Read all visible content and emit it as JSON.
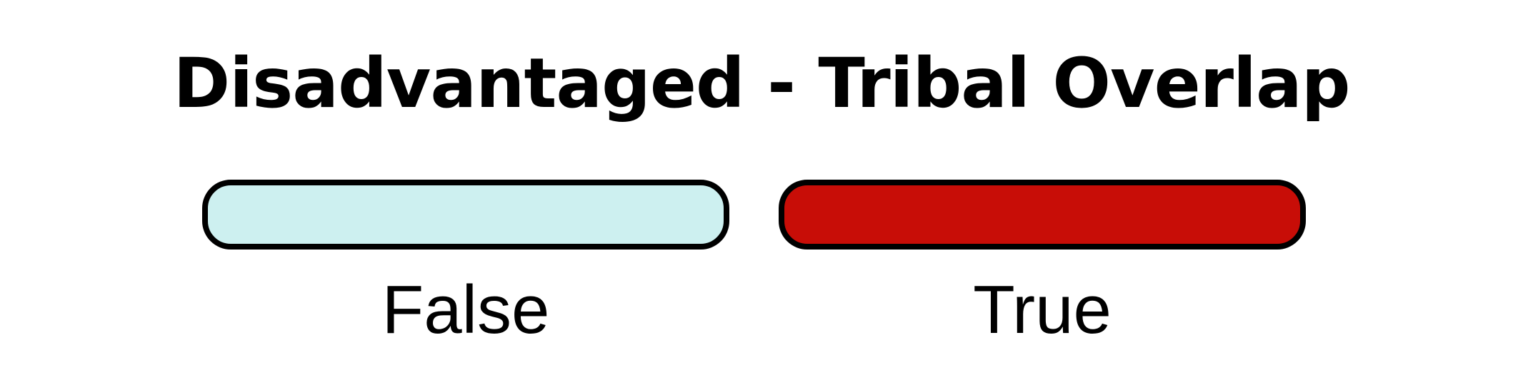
{
  "title": "Disadvantaged - Tribal Overlap",
  "legend": {
    "items": [
      {
        "label": "False",
        "color": "#cdf0f0"
      },
      {
        "label": "True",
        "color": "#c80d07"
      }
    ]
  },
  "colors": {
    "border": "#000000",
    "background": "#ffffff",
    "text": "#000000"
  }
}
